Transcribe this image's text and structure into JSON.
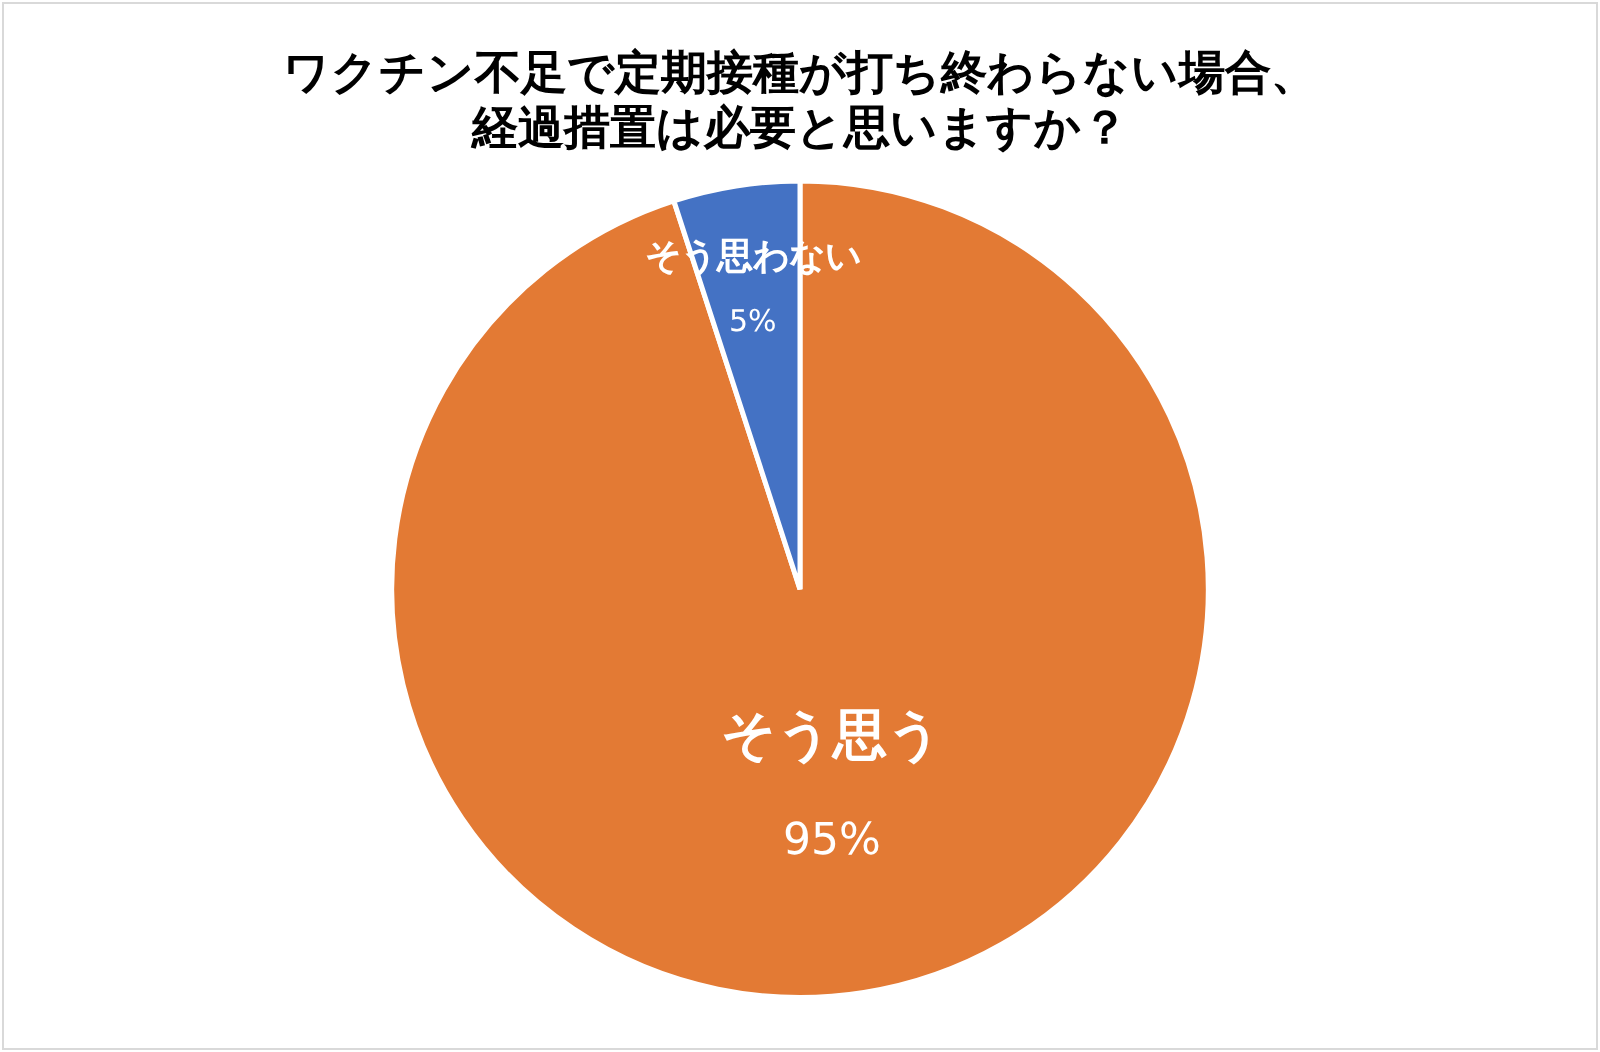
{
  "chart_data": {
    "type": "pie",
    "title": "ワクチン不足で定期接種が打ち終わらない場合、経過措置は必要と思いますか？",
    "categories": [
      "そう思う",
      "そう思わない"
    ],
    "values": [
      95,
      5
    ],
    "colors": [
      "#e37a34",
      "#4472c4"
    ],
    "value_labels": [
      "95%",
      "5%"
    ],
    "legend": false
  }
}
